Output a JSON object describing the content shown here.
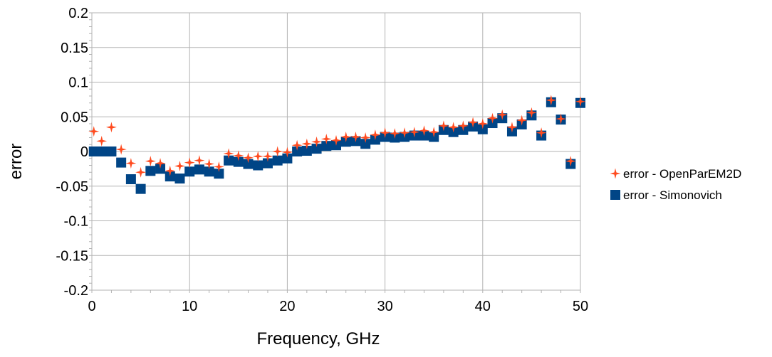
{
  "chart_data": {
    "type": "scatter",
    "xlabel": "Frequency, GHz",
    "ylabel": "error",
    "xlim": [
      0,
      50
    ],
    "ylim": [
      -0.2,
      0.2
    ],
    "xticks": [
      "0",
      "10",
      "20",
      "30",
      "40",
      "50"
    ],
    "yticks": [
      "0.2",
      "0.15",
      "0.1",
      "0.05",
      "0",
      "-0.05",
      "-0.1",
      "-0.15",
      "-0.2"
    ],
    "grid": true,
    "legend_position": "right",
    "series": [
      {
        "name": "error - OpenParEM2D",
        "marker": "star",
        "color": "#ff4b1f",
        "x": [
          0.2,
          1,
          2,
          3,
          4,
          5,
          6,
          7,
          8,
          9,
          10,
          11,
          12,
          13,
          14,
          15,
          16,
          17,
          18,
          19,
          20,
          21,
          22,
          23,
          24,
          25,
          26,
          27,
          28,
          29,
          30,
          31,
          32,
          33,
          34,
          35,
          36,
          37,
          38,
          39,
          40,
          41,
          42,
          43,
          44,
          45,
          46,
          47,
          48,
          49,
          50
        ],
        "y": [
          0.029,
          0.015,
          0.035,
          0.003,
          -0.017,
          -0.03,
          -0.014,
          -0.017,
          -0.028,
          -0.021,
          -0.016,
          -0.013,
          -0.018,
          -0.022,
          -0.003,
          -0.006,
          -0.009,
          -0.007,
          -0.007,
          0.0,
          -0.001,
          0.009,
          0.011,
          0.014,
          0.018,
          0.016,
          0.021,
          0.021,
          0.02,
          0.024,
          0.027,
          0.026,
          0.027,
          0.028,
          0.03,
          0.028,
          0.037,
          0.035,
          0.037,
          0.042,
          0.04,
          0.048,
          0.053,
          0.035,
          0.045,
          0.056,
          0.027,
          0.074,
          0.047,
          -0.014,
          0.072
        ]
      },
      {
        "name": "error - Simonovich",
        "marker": "square",
        "color": "#004586",
        "x": [
          0.2,
          1,
          2,
          3,
          4,
          5,
          6,
          7,
          8,
          9,
          10,
          11,
          12,
          13,
          14,
          15,
          16,
          17,
          18,
          19,
          20,
          21,
          22,
          23,
          24,
          25,
          26,
          27,
          28,
          29,
          30,
          31,
          32,
          33,
          34,
          35,
          36,
          37,
          38,
          39,
          40,
          41,
          42,
          43,
          44,
          45,
          46,
          47,
          48,
          49,
          50
        ],
        "y": [
          0.0,
          0.0,
          0.0,
          -0.016,
          -0.04,
          -0.054,
          -0.028,
          -0.025,
          -0.036,
          -0.039,
          -0.029,
          -0.026,
          -0.029,
          -0.032,
          -0.013,
          -0.015,
          -0.018,
          -0.02,
          -0.017,
          -0.013,
          -0.01,
          0.0,
          0.001,
          0.004,
          0.008,
          0.009,
          0.014,
          0.015,
          0.011,
          0.017,
          0.021,
          0.02,
          0.021,
          0.023,
          0.023,
          0.021,
          0.031,
          0.028,
          0.031,
          0.036,
          0.032,
          0.041,
          0.048,
          0.029,
          0.039,
          0.052,
          0.023,
          0.071,
          0.046,
          -0.018,
          0.07
        ]
      }
    ]
  }
}
